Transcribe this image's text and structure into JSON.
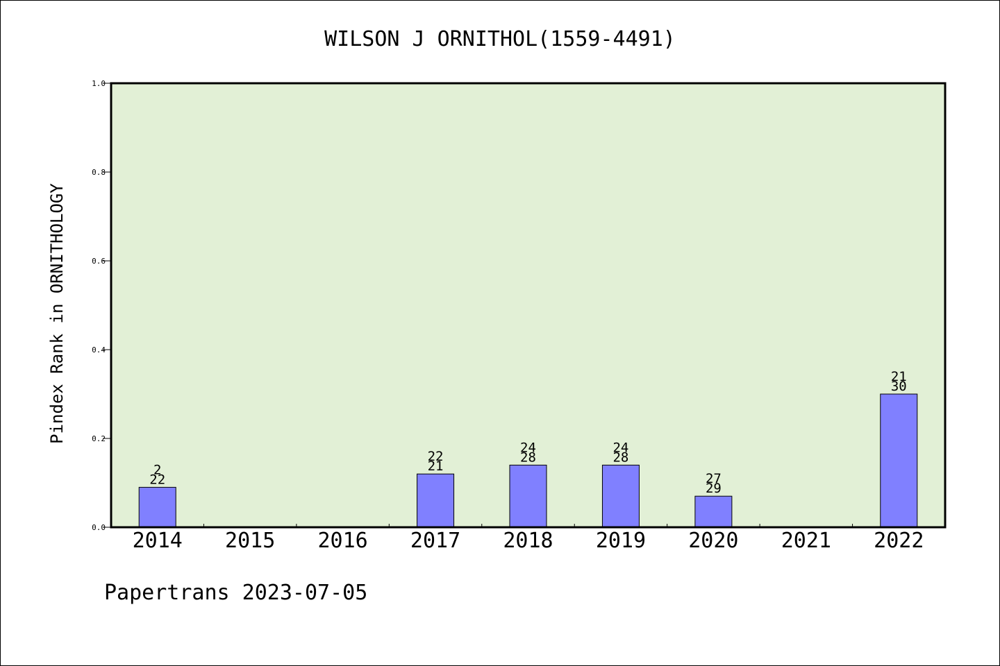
{
  "chart_data": {
    "type": "bar",
    "title": "WILSON J ORNITHOL(1559-4491)",
    "ylabel": "Pindex Rank in ORNITHOLOGY",
    "xlabel": "",
    "footer": "Papertrans 2023-07-05",
    "ylim": [
      0,
      1.0
    ],
    "yticks": [
      "0.0",
      "0.2",
      "0.4",
      "0.6",
      "0.8",
      "1.0"
    ],
    "categories": [
      "2014",
      "2015",
      "2016",
      "2017",
      "2018",
      "2019",
      "2020",
      "2021",
      "2022"
    ],
    "values": [
      0.09,
      null,
      null,
      0.12,
      0.14,
      0.14,
      0.07,
      null,
      0.3
    ],
    "label_top": [
      "2",
      "",
      "",
      "22",
      "24",
      "24",
      "27",
      "",
      "21"
    ],
    "label_bottom": [
      "22",
      "",
      "",
      "21",
      "28",
      "28",
      "29",
      "",
      "30"
    ],
    "grid": false,
    "colors": {
      "plot_background": "#e2f0d6",
      "bar": "#8080ff",
      "bar_border": "#000000"
    }
  }
}
